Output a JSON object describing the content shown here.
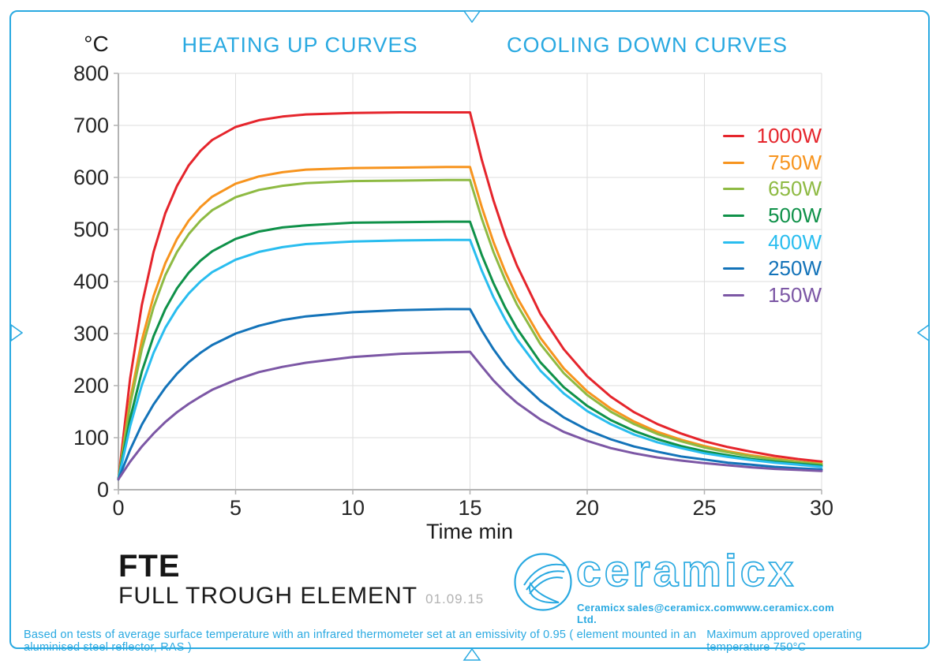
{
  "page": {
    "accent_color": "#29a9e1",
    "background": "#ffffff",
    "grid_color": "#dedede",
    "axis_color": "#b3b3b3"
  },
  "chart_data": {
    "type": "line",
    "title_left": "HEATING UP CURVES",
    "title_right": "COOLING DOWN CURVES",
    "xlabel": "Time min",
    "ylabel": "°C",
    "xlim": [
      0,
      30
    ],
    "ylim": [
      0,
      800
    ],
    "x_ticks": [
      0,
      5,
      10,
      15,
      20,
      25,
      30
    ],
    "y_ticks": [
      0,
      100,
      200,
      300,
      400,
      500,
      600,
      700,
      800
    ],
    "grid": true,
    "legend_position": "right",
    "x": [
      0,
      0.5,
      1,
      1.5,
      2,
      2.5,
      3,
      3.5,
      4,
      5,
      6,
      7,
      8,
      10,
      12,
      14,
      15,
      15.5,
      16,
      16.5,
      17,
      18,
      19,
      20,
      21,
      22,
      23,
      24,
      25,
      26,
      27,
      28,
      29,
      30
    ],
    "series": [
      {
        "name": "1000W",
        "color": "#e5252c",
        "values": [
          20,
          214,
          355,
          457,
          531,
          584,
          623,
          651,
          672,
          697,
          710,
          717,
          721,
          724,
          725,
          725,
          725,
          634,
          556,
          488,
          431,
          338,
          270,
          218,
          179,
          149,
          126,
          108,
          93,
          82,
          73,
          65,
          59,
          54
        ]
      },
      {
        "name": "750W",
        "color": "#f7941e",
        "values": [
          20,
          173,
          287,
          372,
          435,
          482,
          517,
          543,
          563,
          588,
          602,
          610,
          615,
          618,
          619,
          620,
          620,
          543,
          476,
          419,
          370,
          292,
          233,
          189,
          156,
          131,
          111,
          96,
          84,
          74,
          66,
          60,
          54,
          50
        ]
      },
      {
        "name": "650W",
        "color": "#8eba43",
        "values": [
          20,
          163,
          270,
          351,
          412,
          457,
          491,
          517,
          537,
          562,
          576,
          584,
          589,
          593,
          594,
          595,
          595,
          521,
          457,
          403,
          356,
          280,
          224,
          182,
          150,
          126,
          107,
          93,
          81,
          72,
          64,
          58,
          53,
          49
        ]
      },
      {
        "name": "500W",
        "color": "#0f9149",
        "values": [
          20,
          137,
          227,
          295,
          347,
          387,
          417,
          440,
          458,
          482,
          496,
          504,
          508,
          513,
          514,
          515,
          515,
          451,
          397,
          350,
          310,
          245,
          197,
          161,
          134,
          113,
          97,
          84,
          74,
          66,
          59,
          54,
          50,
          46
        ]
      },
      {
        "name": "400W",
        "color": "#29bdef",
        "values": [
          20,
          122,
          201,
          263,
          311,
          348,
          377,
          400,
          418,
          442,
          457,
          466,
          472,
          477,
          479,
          480,
          480,
          421,
          370,
          327,
          289,
          229,
          185,
          151,
          126,
          106,
          91,
          80,
          70,
          63,
          57,
          52,
          48,
          44
        ]
      },
      {
        "name": "250W",
        "color": "#1373b9",
        "values": [
          20,
          77,
          125,
          164,
          196,
          223,
          245,
          263,
          278,
          300,
          315,
          326,
          333,
          341,
          345,
          347,
          347,
          306,
          270,
          239,
          213,
          171,
          139,
          115,
          97,
          83,
          73,
          64,
          58,
          52,
          48,
          44,
          41,
          39
        ]
      },
      {
        "name": "150W",
        "color": "#7c57a5",
        "values": [
          20,
          54,
          83,
          108,
          130,
          149,
          165,
          179,
          192,
          211,
          226,
          236,
          244,
          255,
          261,
          264,
          265,
          237,
          210,
          187,
          167,
          135,
          111,
          94,
          80,
          70,
          62,
          56,
          51,
          47,
          43,
          40,
          38,
          36
        ]
      }
    ]
  },
  "product": {
    "code": "FTE",
    "name": "FULL TROUGH ELEMENT",
    "date": "01.09.15"
  },
  "brand": {
    "wordmark": "ceramicx",
    "company": "Ceramicx Ltd.",
    "email": "sales@ceramicx.com",
    "website": "www.ceramicx.com"
  },
  "footnote": {
    "text1": "Based on tests of average surface temperature with an infrared thermometer set at an emissivity of 0.95 ( element mounted in an aluminised steel reflector, RAS )",
    "text2": "Maximum approved operating temperature 750°C"
  }
}
